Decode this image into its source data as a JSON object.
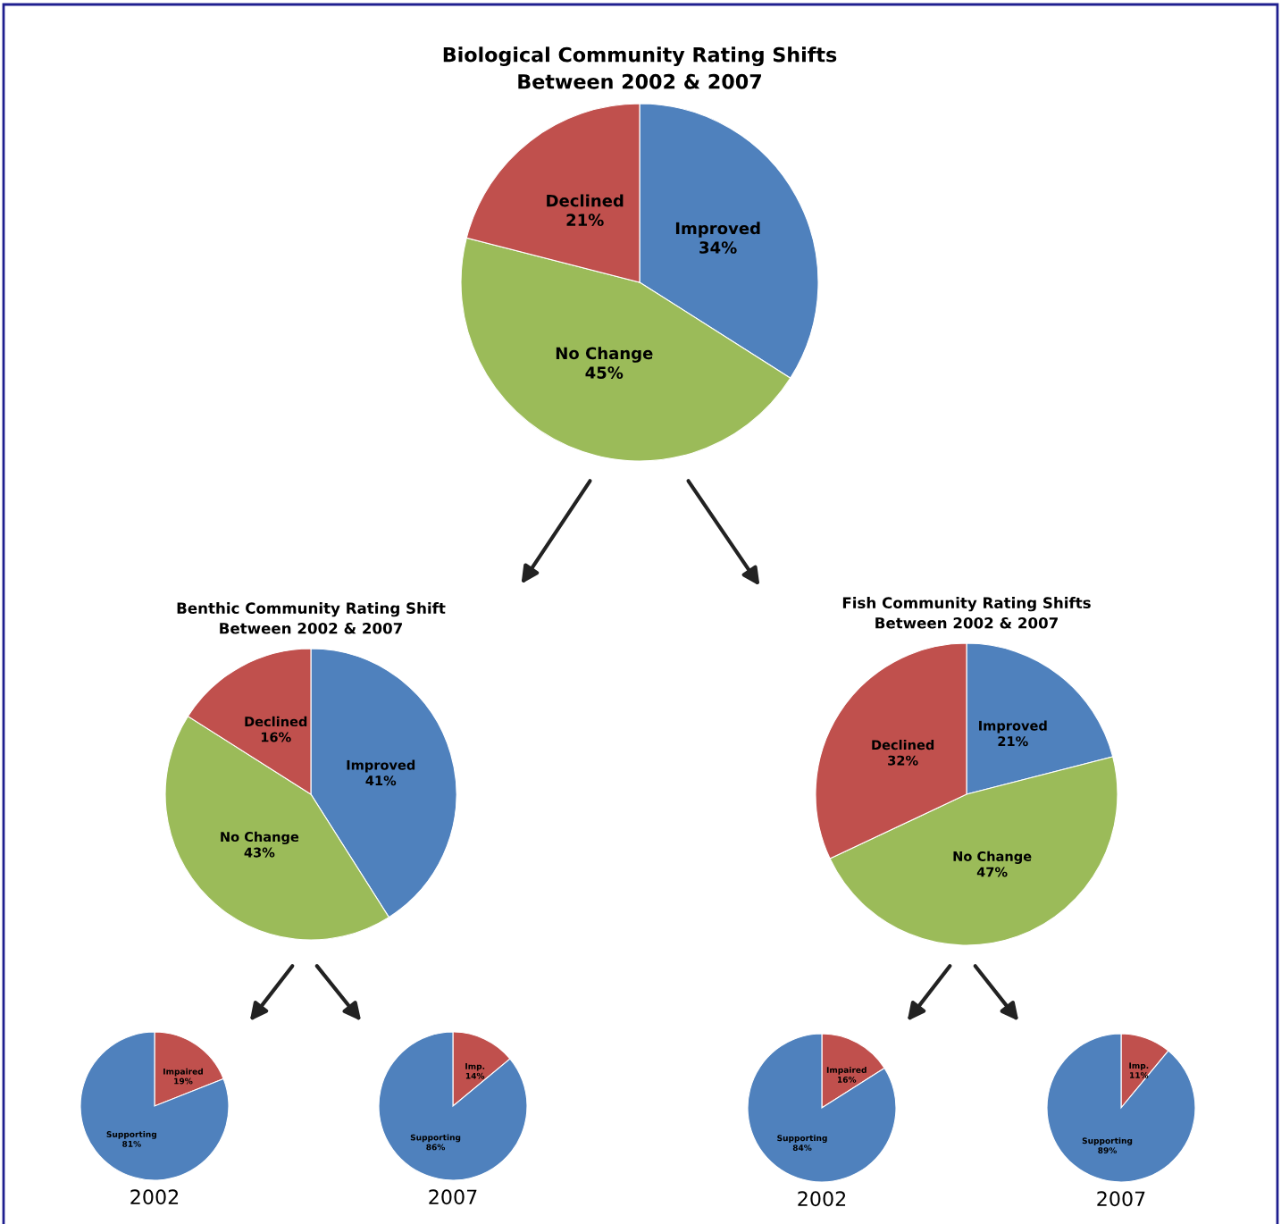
{
  "chart_data": [
    {
      "type": "pie",
      "title": "Biological Community Rating Shifts\nBetween 2002 & 2007",
      "categories": [
        "Improved",
        "No Change",
        "Declined"
      ],
      "values": [
        34,
        45,
        21
      ],
      "value_labels": [
        "34%",
        "45%",
        "21%"
      ],
      "colors": [
        "#4f81bd",
        "#9bbb59",
        "#c0504d"
      ]
    },
    {
      "type": "pie",
      "title": "Benthic Community Rating Shift\nBetween 2002 & 2007",
      "categories": [
        "Improved",
        "No Change",
        "Declined"
      ],
      "values": [
        41,
        43,
        16
      ],
      "value_labels": [
        "41%",
        "43%",
        "16%"
      ],
      "colors": [
        "#4f81bd",
        "#9bbb59",
        "#c0504d"
      ]
    },
    {
      "type": "pie",
      "title": "Fish Community Rating Shifts\nBetween 2002 & 2007",
      "categories": [
        "Improved",
        "No Change",
        "Declined"
      ],
      "values": [
        21,
        47,
        32
      ],
      "value_labels": [
        "21%",
        "47%",
        "32%"
      ],
      "colors": [
        "#4f81bd",
        "#9bbb59",
        "#c0504d"
      ]
    },
    {
      "type": "pie",
      "xlabel": "2002",
      "categories": [
        "Impaired",
        "Supporting"
      ],
      "values": [
        19,
        81
      ],
      "value_labels": [
        "19%",
        "81%"
      ],
      "colors": [
        "#c0504d",
        "#4f81bd"
      ]
    },
    {
      "type": "pie",
      "xlabel": "2007",
      "categories": [
        "Imp.",
        "Supporting"
      ],
      "values": [
        14,
        86
      ],
      "value_labels": [
        "14%",
        "86%"
      ],
      "colors": [
        "#c0504d",
        "#4f81bd"
      ]
    },
    {
      "type": "pie",
      "xlabel": "2002",
      "categories": [
        "Impaired",
        "Supporting"
      ],
      "values": [
        16,
        84
      ],
      "value_labels": [
        "16%",
        "84%"
      ],
      "colors": [
        "#c0504d",
        "#4f81bd"
      ]
    },
    {
      "type": "pie",
      "xlabel": "2007",
      "categories": [
        "Imp.",
        "Supporting"
      ],
      "values": [
        11,
        89
      ],
      "value_labels": [
        "11%",
        "89%"
      ],
      "colors": [
        "#c0504d",
        "#4f81bd"
      ]
    }
  ]
}
